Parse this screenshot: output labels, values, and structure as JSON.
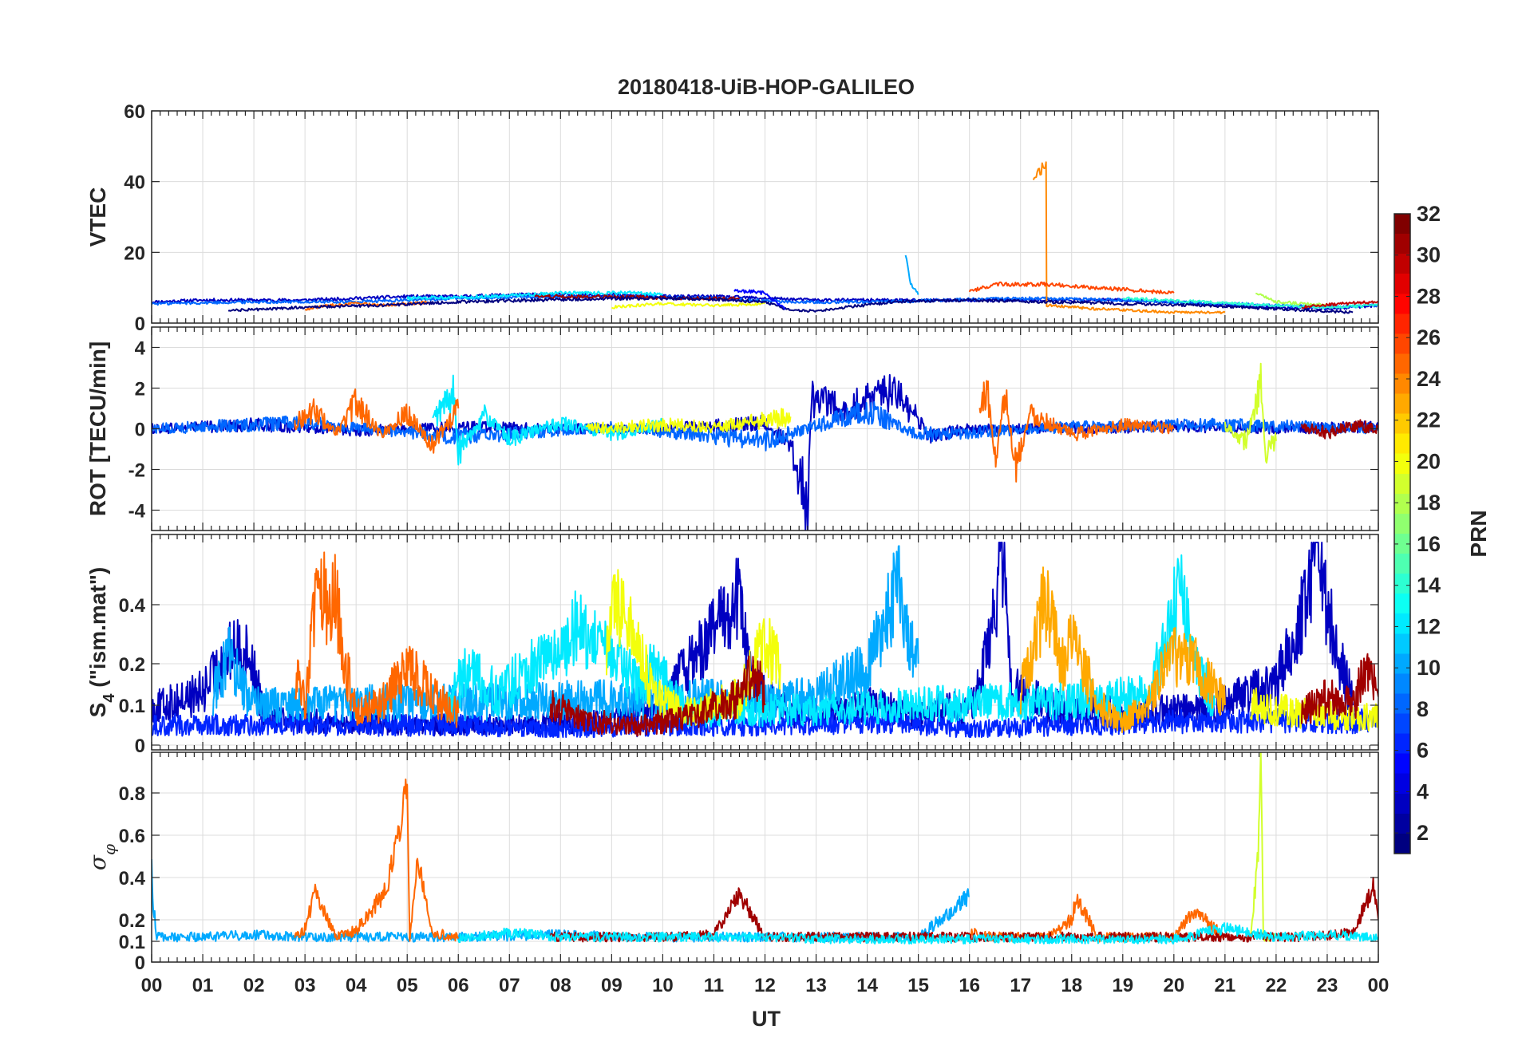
{
  "chart_data": {
    "type": "line",
    "title": "20180418-UiB-HOP-GALILEO",
    "xlabel": "UT",
    "x_tick_labels": [
      "00",
      "01",
      "02",
      "03",
      "04",
      "05",
      "06",
      "07",
      "08",
      "09",
      "10",
      "11",
      "12",
      "13",
      "14",
      "15",
      "16",
      "17",
      "18",
      "19",
      "20",
      "21",
      "22",
      "23",
      "00"
    ],
    "x_range_hours": [
      0,
      24
    ],
    "grid": true,
    "colormap": "jet",
    "colorbar": {
      "label": "PRN",
      "range": [
        1,
        32
      ],
      "tick_labels": [
        "2",
        "4",
        "6",
        "8",
        "10",
        "12",
        "14",
        "16",
        "18",
        "20",
        "22",
        "24",
        "26",
        "28",
        "30",
        "32"
      ],
      "position": "right"
    },
    "panels": [
      {
        "ylabel": "VTEC",
        "ylim": [
          0,
          60
        ],
        "y_tick_labels": [
          "0",
          "20",
          "40",
          "60"
        ],
        "series": [
          {
            "prn": 3,
            "x": [
              0,
              1,
              2,
              3,
              4,
              5,
              6,
              7,
              8,
              9,
              10,
              11,
              12,
              13,
              14,
              15,
              16,
              17,
              18,
              19,
              20,
              21,
              22,
              23,
              24
            ],
            "y": [
              6,
              6.5,
              6.5,
              6.5,
              7,
              7.5,
              7.5,
              8,
              8,
              8,
              7.5,
              7.5,
              7,
              6.5,
              6.5,
              6.5,
              6.5,
              6.5,
              6.5,
              6.5,
              6,
              5,
              4.5,
              4,
              5
            ]
          },
          {
            "prn": 8,
            "x": [
              0,
              2,
              4,
              6,
              8,
              9.5,
              11,
              12.5,
              14,
              15.5,
              17,
              19,
              21,
              23,
              24
            ],
            "y": [
              5.5,
              6,
              6,
              7,
              7.5,
              7.5,
              7,
              6,
              6,
              6.5,
              7,
              6.5,
              5.5,
              4.5,
              5
            ]
          },
          {
            "prn": 12,
            "x": [
              5,
              6.5,
              8,
              9.5,
              10
            ],
            "y": [
              7,
              7.5,
              8.5,
              8.5,
              8
            ]
          },
          {
            "prn": 14,
            "x": [
              19,
              20.5,
              22,
              23,
              24
            ],
            "y": [
              7,
              6,
              5,
              4.5,
              5
            ]
          },
          {
            "prn": 10,
            "x": [
              14.75,
              14.85,
              15.0
            ],
            "y": [
              19.5,
              11,
              8
            ]
          },
          {
            "prn": 25,
            "x": [
              3.0,
              3.5,
              4.0,
              4.5,
              5.0,
              5.5
            ],
            "y": [
              4,
              5,
              5.5,
              5,
              5.5,
              6
            ]
          },
          {
            "prn": 24,
            "x": [
              17.25,
              17.5,
              17.51,
              18.5,
              20,
              21
            ],
            "y": [
              41,
              45,
              5,
              4,
              3,
              3
            ]
          },
          {
            "prn": 26,
            "x": [
              16.0,
              16.5,
              17.5,
              18.5,
              19.5,
              20.0
            ],
            "y": [
              9,
              11,
              11,
              10,
              9,
              8.5
            ]
          },
          {
            "prn": 20,
            "x": [
              9,
              10,
              11,
              12
            ],
            "y": [
              4.5,
              5.5,
              5,
              5.5
            ]
          },
          {
            "prn": 18,
            "x": [
              21.6,
              22,
              22.5,
              23
            ],
            "y": [
              8.5,
              6,
              5.5,
              5
            ]
          },
          {
            "prn": 31,
            "x": [
              7.5,
              9,
              10.5,
              11.5
            ],
            "y": [
              7.5,
              7.5,
              7,
              7
            ]
          },
          {
            "prn": 30,
            "x": [
              22.5,
              23.3,
              24
            ],
            "y": [
              4.5,
              5.5,
              6
            ]
          },
          {
            "prn": 1,
            "x": [
              1.5,
              3,
              4.5,
              6,
              7.5,
              9,
              10.5,
              12,
              12.5,
              13,
              14.5,
              16,
              17.5,
              19,
              20.5,
              22,
              23.5
            ],
            "y": [
              3.5,
              4.5,
              5,
              6,
              6.5,
              7,
              7,
              6,
              3.5,
              3.5,
              6,
              6.5,
              6,
              5.5,
              5,
              4,
              3
            ]
          },
          {
            "prn": 5,
            "x": [
              11.4,
              11.7,
              12,
              12.2,
              12.4
            ],
            "y": [
              9,
              9,
              8.5,
              6,
              4
            ]
          }
        ]
      },
      {
        "ylabel": "ROT [TECU/min]",
        "ylim": [
          -5,
          5
        ],
        "y_tick_labels": [
          "-4",
          "-2",
          "0",
          "2",
          "4"
        ],
        "series": [
          {
            "prn": 3,
            "x": [
              0,
              2,
              4,
              6,
              8,
              10,
              12,
              12.5,
              12.85,
              12.9,
              13.5,
              14.5,
              15.0,
              15.2,
              16,
              18,
              20,
              22,
              24
            ],
            "y": [
              0,
              0.2,
              -0.1,
              0.1,
              0,
              0,
              0.3,
              -0.8,
              -3.8,
              1.5,
              1.0,
              1.8,
              0.5,
              -0.4,
              0,
              0,
              0.1,
              0,
              0.1
            ]
          },
          {
            "prn": 8,
            "x": [
              0,
              3,
              6,
              9,
              12,
              14,
              15,
              18,
              21,
              24
            ],
            "y": [
              0,
              0.3,
              -0.4,
              0.1,
              -0.6,
              0.9,
              -0.3,
              0.1,
              0.2,
              0
            ]
          },
          {
            "prn": 12,
            "x": [
              5.5,
              5.9,
              6.0,
              6.5,
              7.0,
              8.0,
              9.0,
              10.0
            ],
            "y": [
              0.4,
              1.8,
              -1.2,
              0.7,
              -0.5,
              0.3,
              -0.3,
              0.2
            ]
          },
          {
            "prn": 25,
            "x": [
              2.8,
              3.2,
              3.6,
              4.0,
              4.5,
              5.0,
              5.5,
              6.0
            ],
            "y": [
              0.3,
              0.9,
              -0.3,
              1.3,
              -0.3,
              0.8,
              -0.8,
              1.0
            ]
          },
          {
            "prn": 25,
            "x": [
              16.2,
              16.35,
              16.5,
              16.7,
              16.9,
              17.2,
              18,
              19,
              20
            ],
            "y": [
              0.8,
              2.1,
              -1.6,
              1.8,
              -1.8,
              0.8,
              -0.3,
              0.2,
              0
            ]
          },
          {
            "prn": 20,
            "x": [
              8.5,
              10,
              11,
              12,
              12.5
            ],
            "y": [
              0,
              0.2,
              0.1,
              0.4,
              0.6
            ]
          },
          {
            "prn": 19,
            "x": [
              21,
              21.4,
              21.6,
              21.7,
              21.8,
              22.0
            ],
            "y": [
              0.2,
              -0.6,
              1.0,
              3.0,
              -1.7,
              -0.6
            ]
          },
          {
            "prn": 31,
            "x": [
              22.5,
              23,
              23.5,
              24
            ],
            "y": [
              0.1,
              -0.2,
              0.2,
              0
            ]
          }
        ]
      },
      {
        "ylabel": "S_4 (\"ism.mat\")",
        "y_tick_labels": [
          "0",
          "0.1",
          "0.2",
          "0.4"
        ],
        "y_tick_values": [
          0,
          0.1,
          0.2,
          0.4
        ],
        "y_range": [
          0,
          0.6
        ],
        "series": [
          {
            "prn": 3,
            "x": [
              0,
              1,
              1.6,
              1.9,
              2.2,
              3,
              5,
              7,
              9,
              10,
              11.5,
              11.7,
              12,
              12.5,
              13,
              14,
              15,
              16.1,
              16.4,
              16.65,
              16.8,
              17.5,
              19,
              20.5,
              22,
              22.6,
              22.8,
              23.2,
              23.5
            ],
            "y": [
              0.09,
              0.13,
              0.26,
              0.24,
              0.08,
              0.06,
              0.05,
              0.05,
              0.06,
              0.1,
              0.42,
              0.18,
              0.12,
              0.08,
              0.08,
              0.1,
              0.08,
              0.1,
              0.28,
              0.6,
              0.14,
              0.1,
              0.08,
              0.09,
              0.15,
              0.4,
              0.53,
              0.25,
              0.1
            ]
          },
          {
            "prn": 6,
            "x": [
              0,
              2,
              4,
              6,
              8,
              10,
              12,
              14,
              15,
              16,
              18,
              20,
              22,
              24
            ],
            "y": [
              0.05,
              0.05,
              0.05,
              0.05,
              0.04,
              0.05,
              0.05,
              0.06,
              0.05,
              0.04,
              0.05,
              0.06,
              0.06,
              0.06
            ]
          },
          {
            "prn": 10,
            "x": [
              1.2,
              1.5,
              1.8,
              2.0,
              13,
              14,
              14.6,
              14.8,
              15.0
            ],
            "y": [
              0.12,
              0.24,
              0.14,
              0.1,
              0.12,
              0.2,
              0.45,
              0.28,
              0.2
            ]
          },
          {
            "prn": 12,
            "x": [
              5.8,
              6.2,
              6.8,
              7.2,
              7.6,
              8.0,
              8.3,
              9.5,
              9.8,
              10.5,
              19.5,
              19.9,
              20.1,
              20.4,
              20.8
            ],
            "y": [
              0.1,
              0.2,
              0.12,
              0.18,
              0.22,
              0.24,
              0.33,
              0.16,
              0.2,
              0.08,
              0.12,
              0.3,
              0.45,
              0.22,
              0.1
            ]
          },
          {
            "prn": 25,
            "x": [
              2.8,
              3.0,
              3.2,
              3.4,
              3.6,
              3.8,
              4.0,
              4.5,
              5.0,
              5.5,
              6.0
            ],
            "y": [
              0.18,
              0.1,
              0.38,
              0.42,
              0.43,
              0.2,
              0.08,
              0.1,
              0.2,
              0.12,
              0.08
            ]
          },
          {
            "prn": 23,
            "x": [
              17.0,
              17.2,
              17.5,
              17.8,
              18.0,
              18.5,
              19.0,
              19.5,
              20.0,
              20.5,
              21.0
            ],
            "y": [
              0.12,
              0.24,
              0.42,
              0.2,
              0.28,
              0.1,
              0.06,
              0.1,
              0.24,
              0.2,
              0.1
            ]
          },
          {
            "prn": 20,
            "x": [
              8.9,
              9.1,
              9.5,
              9.8,
              10.5,
              11.5,
              12.0,
              12.3
            ],
            "y": [
              0.25,
              0.42,
              0.28,
              0.12,
              0.08,
              0.12,
              0.28,
              0.2
            ]
          },
          {
            "prn": 20,
            "x": [
              21.5,
              22.5,
              23.5,
              24
            ],
            "y": [
              0.1,
              0.08,
              0.07,
              0.07
            ]
          },
          {
            "prn": 31,
            "x": [
              7.8,
              8.5,
              9.5,
              10.5,
              11.5,
              11.8,
              12.0
            ],
            "y": [
              0.1,
              0.06,
              0.05,
              0.07,
              0.12,
              0.2,
              0.1
            ]
          },
          {
            "prn": 31,
            "x": [
              22.5,
              23.0,
              23.5,
              23.8,
              24.0
            ],
            "y": [
              0.08,
              0.12,
              0.1,
              0.2,
              0.12
            ]
          }
        ]
      },
      {
        "ylabel": "σ_φ",
        "ylim": [
          0,
          1
        ],
        "y_tick_labels": [
          "0",
          "0.1",
          "0.2",
          "0.4",
          "0.6",
          "0.8"
        ],
        "y_tick_values": [
          0,
          0.1,
          0.2,
          0.4,
          0.6,
          0.8
        ],
        "series": [
          {
            "prn": 10,
            "x": [
              0,
              0.02,
              0.1,
              1,
              2,
              3,
              4,
              6,
              8,
              10,
              12,
              14,
              15.0,
              16.0
            ],
            "y": [
              0.5,
              0.3,
              0.12,
              0.12,
              0.13,
              0.12,
              0.12,
              0.12,
              0.13,
              0.12,
              0.12,
              0.12,
              0.12,
              0.31
            ]
          },
          {
            "prn": 25,
            "x": [
              2.8,
              3.0,
              3.2,
              3.6,
              4.0,
              4.6,
              5.0,
              5.05,
              5.2,
              5.5,
              6.0
            ],
            "y": [
              0.12,
              0.16,
              0.33,
              0.12,
              0.15,
              0.34,
              0.84,
              0.12,
              0.5,
              0.14,
              0.12
            ]
          },
          {
            "prn": 25,
            "x": [
              16.0,
              16.5,
              17.0,
              17.5,
              18.0,
              18.1,
              18.5,
              19.0,
              20.0,
              20.4,
              21.0
            ],
            "y": [
              0.14,
              0.12,
              0.12,
              0.12,
              0.2,
              0.31,
              0.12,
              0.12,
              0.12,
              0.24,
              0.12
            ]
          },
          {
            "prn": 19,
            "x": [
              21.5,
              21.65,
              21.7,
              21.75,
              22.0
            ],
            "y": [
              0.12,
              0.5,
              1.0,
              0.12,
              0.12
            ]
          },
          {
            "prn": 31,
            "x": [
              7.8,
              9,
              10,
              11,
              11.5,
              12,
              22.5,
              23.5,
              23.9,
              24.0
            ],
            "y": [
              0.12,
              0.12,
              0.12,
              0.13,
              0.32,
              0.12,
              0.12,
              0.14,
              0.35,
              0.2
            ]
          },
          {
            "prn": 12,
            "x": [
              6,
              7,
              8,
              9,
              10,
              12,
              13,
              14,
              15,
              20,
              21,
              22,
              23,
              24
            ],
            "y": [
              0.11,
              0.14,
              0.12,
              0.12,
              0.12,
              0.12,
              0.11,
              0.11,
              0.11,
              0.11,
              0.16,
              0.12,
              0.13,
              0.12
            ]
          }
        ]
      }
    ]
  }
}
